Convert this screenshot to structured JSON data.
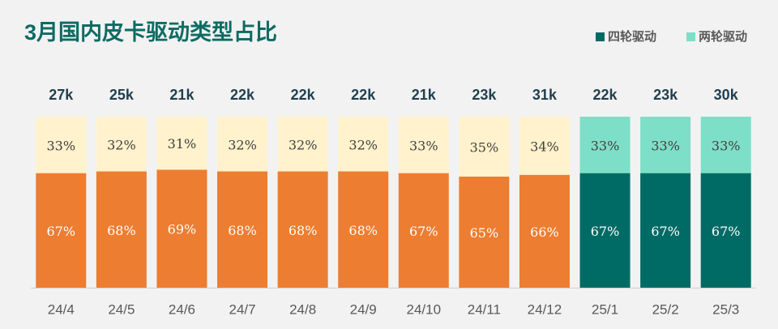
{
  "chart_data": {
    "type": "stacked_bar_100",
    "title": "3月国内皮卡驱动类型占比",
    "categories": [
      "24/4",
      "24/5",
      "24/6",
      "24/7",
      "24/8",
      "24/9",
      "24/10",
      "24/11",
      "24/12",
      "25/1",
      "25/2",
      "25/3"
    ],
    "series": [
      {
        "name": "四轮驱动",
        "color": "#006b65",
        "colors": [
          "#ed7d31",
          "#ed7d31",
          "#ed7d31",
          "#ed7d31",
          "#ed7d31",
          "#ed7d31",
          "#ed7d31",
          "#ed7d31",
          "#ed7d31",
          "#006b65",
          "#006b65",
          "#006b65"
        ],
        "values": [
          67,
          68,
          69,
          68,
          68,
          68,
          67,
          65,
          66,
          67,
          67,
          67
        ],
        "value_labels": [
          "67%",
          "68%",
          "69%",
          "68%",
          "68%",
          "68%",
          "67%",
          "65%",
          "66%",
          "67%",
          "67%",
          "67%"
        ]
      },
      {
        "name": "两轮驱动",
        "color": "#7ddfc7",
        "colors": [
          "#fff2cc",
          "#fff2cc",
          "#fff2cc",
          "#fff2cc",
          "#fff2cc",
          "#fff2cc",
          "#fff2cc",
          "#fff2cc",
          "#fff2cc",
          "#7ddfc7",
          "#7ddfc7",
          "#7ddfc7"
        ],
        "values": [
          33,
          32,
          31,
          32,
          32,
          32,
          33,
          35,
          34,
          33,
          33,
          33
        ],
        "value_labels": [
          "33%",
          "32%",
          "31%",
          "32%",
          "32%",
          "32%",
          "33%",
          "35%",
          "34%",
          "33%",
          "33%",
          "33%"
        ]
      }
    ],
    "totals": {
      "values": [
        27000,
        25000,
        21000,
        22000,
        22000,
        22000,
        21000,
        23000,
        31000,
        22000,
        23000,
        30000
      ],
      "value_labels": [
        "27k",
        "25k",
        "21k",
        "22k",
        "22k",
        "22k",
        "21k",
        "23k",
        "31k",
        "22k",
        "23k",
        "30k"
      ]
    },
    "ylim": [
      0,
      100
    ],
    "legend": "top-right"
  }
}
